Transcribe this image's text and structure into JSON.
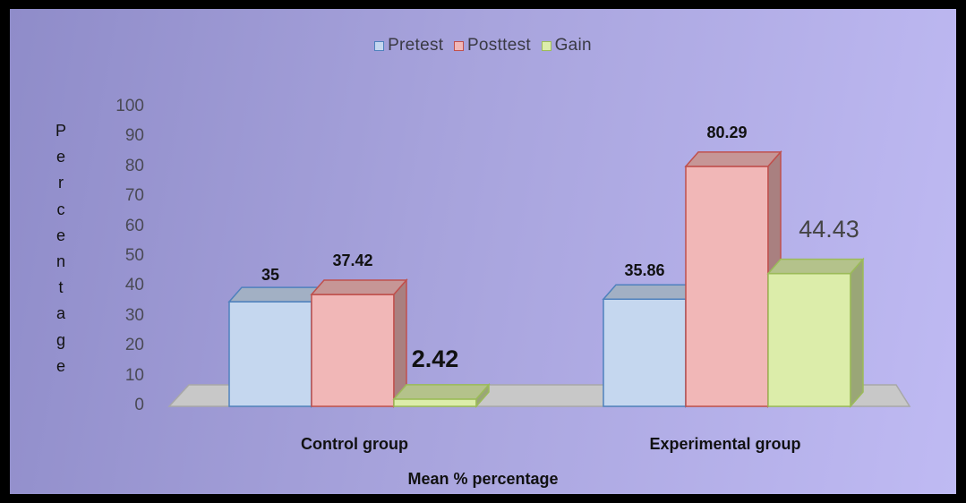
{
  "chart_data": {
    "type": "bar",
    "categories": [
      "Control group",
      "Experimental group"
    ],
    "series": [
      {
        "name": "Pretest",
        "values": [
          35,
          35.86
        ],
        "labels": [
          "35",
          "35.86"
        ]
      },
      {
        "name": "Posttest",
        "values": [
          37.42,
          80.29
        ],
        "labels": [
          "37.42",
          "80.29"
        ]
      },
      {
        "name": "Gain",
        "values": [
          2.42,
          44.43
        ],
        "labels": [
          "2.42",
          "44.43"
        ]
      }
    ],
    "ylabel": "Percentage",
    "ylabel_letters": [
      "P",
      "e",
      "r",
      "c",
      "e",
      "n",
      "t",
      "a",
      "g",
      "e"
    ],
    "xlabel": "Mean % percentage",
    "ylim": [
      0,
      100
    ],
    "yticks": [
      "100",
      "90",
      "80",
      "70",
      "60",
      "50",
      "40",
      "30",
      "20",
      "10",
      "0"
    ],
    "legend_position": "top-center",
    "grid": false
  },
  "colors": {
    "Pretest": "#c5d7ef",
    "Posttest": "#f1b7b7",
    "Gain": "#dcedaa",
    "Pretest_edge": "#4f81bd",
    "Posttest_edge": "#c0504d",
    "Gain_edge": "#9bbb59",
    "floor": "#c8c8c8"
  }
}
